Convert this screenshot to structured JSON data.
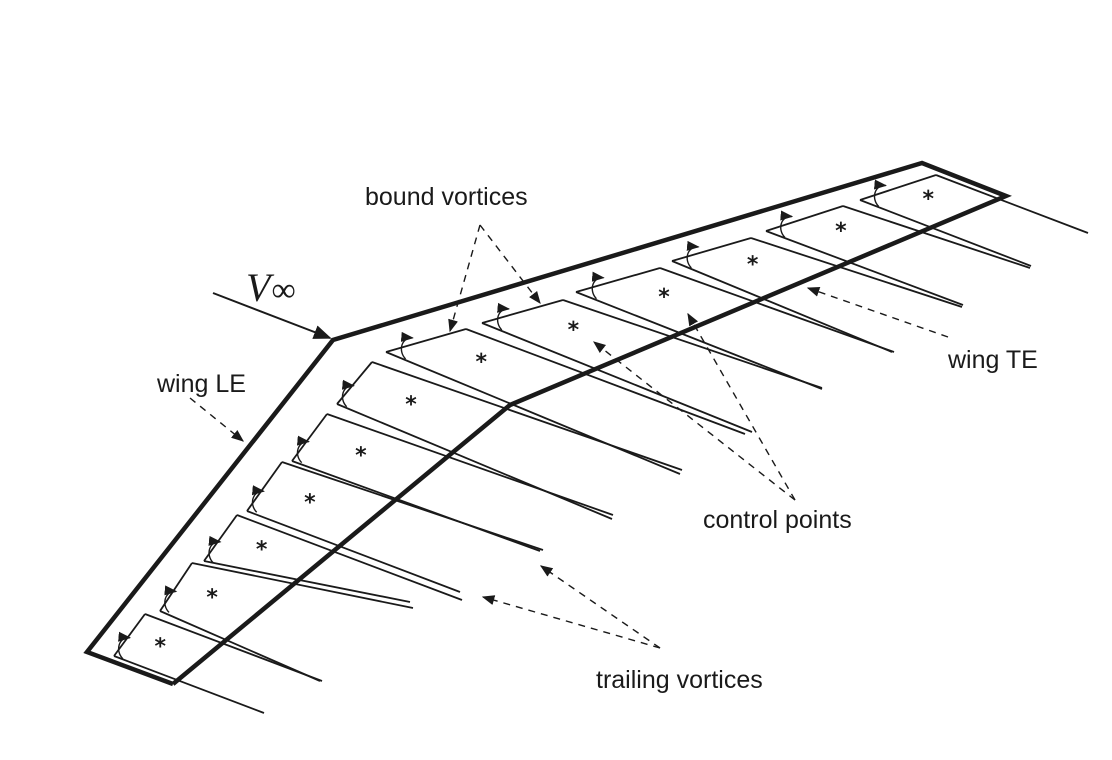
{
  "labels": {
    "bound_vortices": "bound vortices",
    "wing_le": "wing LE",
    "wing_te": "wing TE",
    "control_points": "control points",
    "trailing_vortices": "trailing vortices",
    "v_symbol": "V",
    "v_subscript": "∞"
  },
  "panel_count": 9,
  "colors": {
    "ink": "#1a1a1a"
  }
}
